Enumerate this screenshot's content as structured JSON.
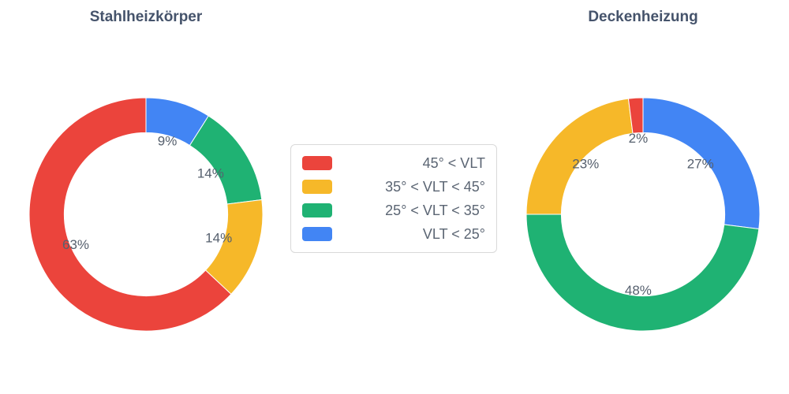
{
  "figure": {
    "background_color": "#ffffff",
    "title_color": "#45536b",
    "label_color": "#56606e",
    "legend_border_color": "#d9d9d9"
  },
  "palette": {
    "red": "#EB443C",
    "yellow": "#F6B829",
    "green": "#1FB273",
    "blue": "#4285F4"
  },
  "legend": {
    "items": [
      {
        "color": "#EB443C",
        "label": "45° < VLT"
      },
      {
        "color": "#F6B829",
        "label": "35° < VLT < 45°"
      },
      {
        "color": "#1FB273",
        "label": "25° < VLT < 35°"
      },
      {
        "color": "#4285F4",
        "label": "VLT < 25°"
      }
    ]
  },
  "chart_data": [
    {
      "type": "pie",
      "title": "Stahlheizkörper",
      "hole": 0.7,
      "rotation_deg_clockwise_from_top": 0,
      "slices": [
        {
          "legend": "VLT < 25°",
          "value": 9,
          "text": "9%",
          "color": "#4285F4"
        },
        {
          "legend": "25° < VLT < 35°",
          "value": 14,
          "text": "14%",
          "color": "#1FB273"
        },
        {
          "legend": "35° < VLT < 45°",
          "value": 14,
          "text": "14%",
          "color": "#F6B829"
        },
        {
          "legend": "45° < VLT",
          "value": 63,
          "text": "63%",
          "color": "#EB443C"
        }
      ]
    },
    {
      "type": "pie",
      "title": "Deckenheizung",
      "hole": 0.7,
      "rotation_deg_clockwise_from_top": 0,
      "slices": [
        {
          "legend": "VLT < 25°",
          "value": 27,
          "text": "27%",
          "color": "#4285F4"
        },
        {
          "legend": "25° < VLT < 35°",
          "value": 48,
          "text": "48%",
          "color": "#1FB273"
        },
        {
          "legend": "35° < VLT < 45°",
          "value": 23,
          "text": "23%",
          "color": "#F6B829"
        },
        {
          "legend": "45° < VLT",
          "value": 2,
          "text": "2%",
          "color": "#EB443C"
        }
      ]
    }
  ]
}
